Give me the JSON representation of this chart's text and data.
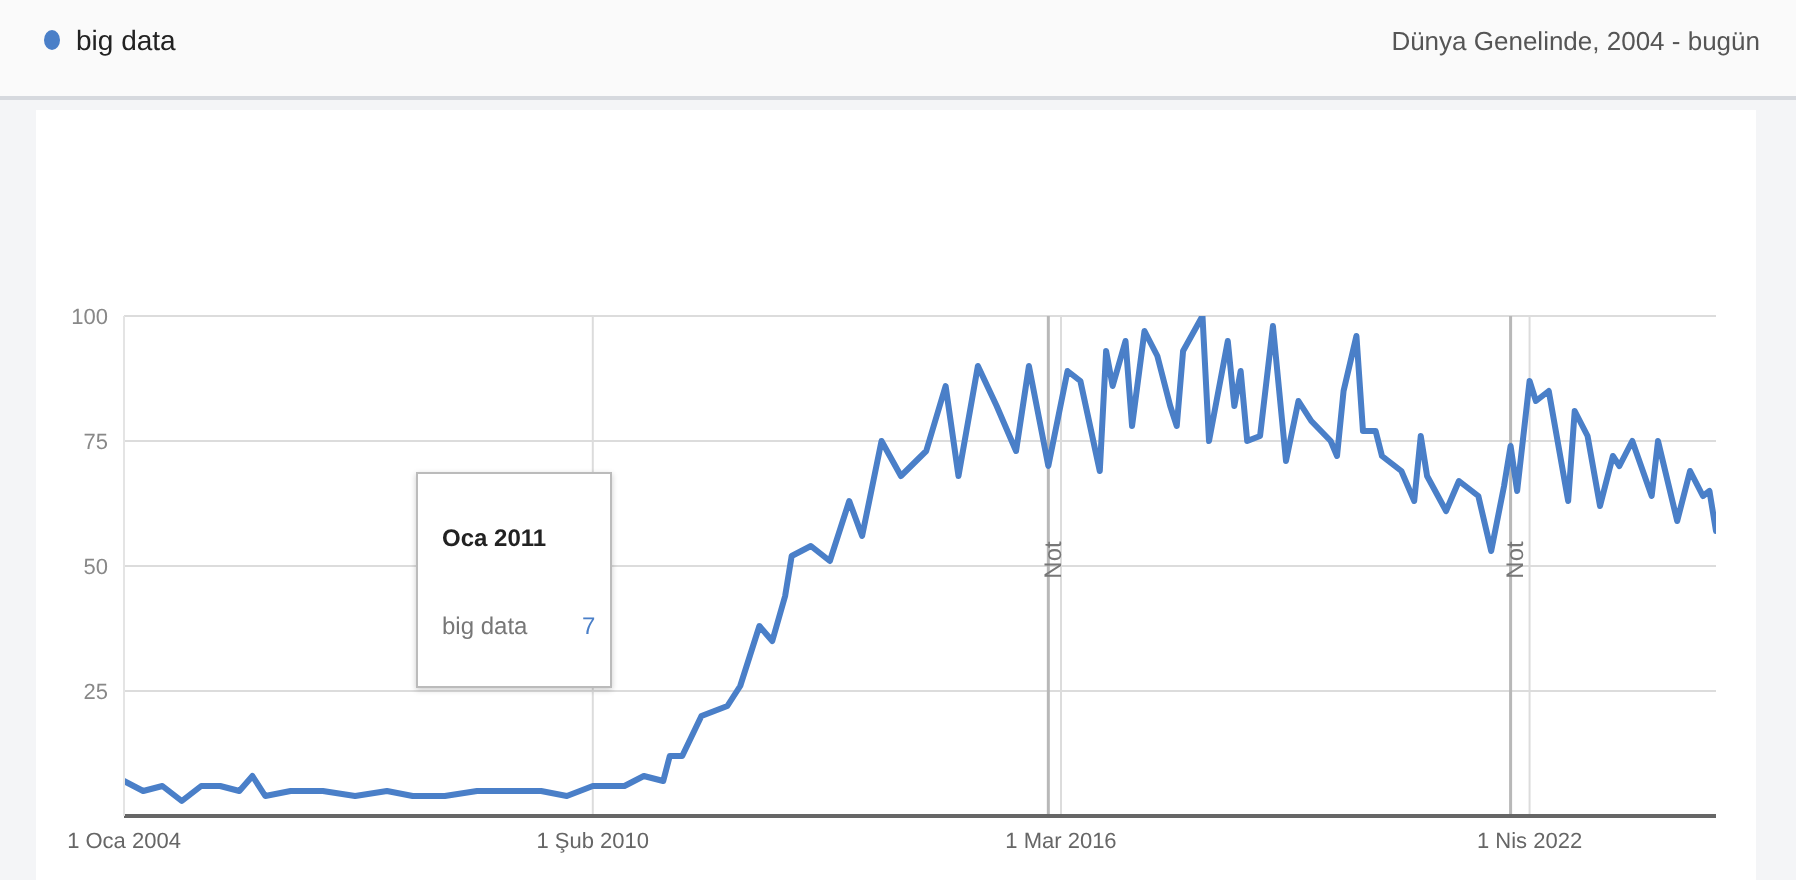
{
  "chart_data": {
    "type": "line",
    "subtitle": "Dünya Genelinde, 2004 - bugün",
    "x": [
      "2004-01",
      "2004-04",
      "2004-07",
      "2004-10",
      "2005-01",
      "2005-04",
      "2005-07",
      "2005-09",
      "2005-11",
      "2006-03",
      "2006-08",
      "2007-01",
      "2007-06",
      "2007-10",
      "2008-03",
      "2008-08",
      "2009-01",
      "2009-06",
      "2009-10",
      "2010-02",
      "2010-07",
      "2010-10",
      "2011-01",
      "2011-02",
      "2011-04",
      "2011-07",
      "2011-11",
      "2012-01",
      "2012-04",
      "2012-06",
      "2012-08",
      "2012-09",
      "2012-12",
      "2013-03",
      "2013-06",
      "2013-08",
      "2013-11",
      "2014-02",
      "2014-06",
      "2014-09",
      "2014-11",
      "2015-02",
      "2015-05",
      "2015-08",
      "2015-10",
      "2016-01",
      "2016-04",
      "2016-06",
      "2016-09",
      "2016-10",
      "2016-11",
      "2017-01",
      "2017-02",
      "2017-04",
      "2017-06",
      "2017-08",
      "2017-09",
      "2017-10",
      "2018-01",
      "2018-02",
      "2018-05",
      "2018-06",
      "2018-07",
      "2018-08",
      "2018-10",
      "2018-12",
      "2019-02",
      "2019-04",
      "2019-06",
      "2019-09",
      "2019-10",
      "2019-11",
      "2020-01",
      "2020-02",
      "2020-04",
      "2020-05",
      "2020-08",
      "2020-10",
      "2020-11",
      "2020-12",
      "2021-03",
      "2021-05",
      "2021-08",
      "2021-10",
      "2021-12",
      "2022-01",
      "2022-02",
      "2022-04",
      "2022-05",
      "2022-07",
      "2022-10",
      "2022-11",
      "2023-01",
      "2023-03",
      "2023-05",
      "2023-06",
      "2023-08",
      "2023-11",
      "2023-12",
      "2024-03",
      "2024-05",
      "2024-07",
      "2024-08",
      "2024-09"
    ],
    "series": [
      {
        "name": "big data",
        "color": "#4a7fc8",
        "values": [
          7,
          5,
          6,
          3,
          6,
          6,
          5,
          8,
          4,
          5,
          5,
          4,
          5,
          4,
          4,
          5,
          5,
          5,
          4,
          6,
          6,
          8,
          7,
          12,
          12,
          20,
          22,
          26,
          38,
          35,
          44,
          52,
          54,
          51,
          63,
          56,
          75,
          68,
          73,
          86,
          68,
          90,
          82,
          73,
          90,
          70,
          89,
          87,
          69,
          93,
          86,
          95,
          78,
          97,
          92,
          82,
          78,
          93,
          100,
          75,
          95,
          82,
          89,
          75,
          76,
          98,
          71,
          83,
          79,
          75,
          72,
          85,
          96,
          77,
          77,
          72,
          69,
          63,
          76,
          68,
          61,
          67,
          64,
          53,
          66,
          74,
          65,
          87,
          83,
          85,
          63,
          81,
          76,
          62,
          72,
          70,
          75,
          64,
          75,
          59,
          69,
          64,
          65,
          57
        ]
      }
    ],
    "xlim": [
      "2004-01-01",
      "2024-09-01"
    ],
    "xticks": [
      {
        "value": "2004-01-01",
        "label": "1 Oca 2004"
      },
      {
        "value": "2010-02-01",
        "label": "1 Şub 2010"
      },
      {
        "value": "2016-03-01",
        "label": "1 Mar 2016"
      },
      {
        "value": "2022-04-01",
        "label": "1 Nis 2022"
      }
    ],
    "ylim": [
      0,
      100
    ],
    "yticks": [
      25,
      50,
      75,
      100
    ],
    "grid": true,
    "legend": "top left",
    "marker": "none",
    "line_style": "solid",
    "ref_lines": [
      {
        "axis": "x",
        "value": "2016-01-01",
        "label": "Not"
      },
      {
        "axis": "x",
        "value": "2022-01-01",
        "label": "Not"
      }
    ],
    "annotations": [
      "Oca 2011",
      "big data",
      "7"
    ]
  }
}
